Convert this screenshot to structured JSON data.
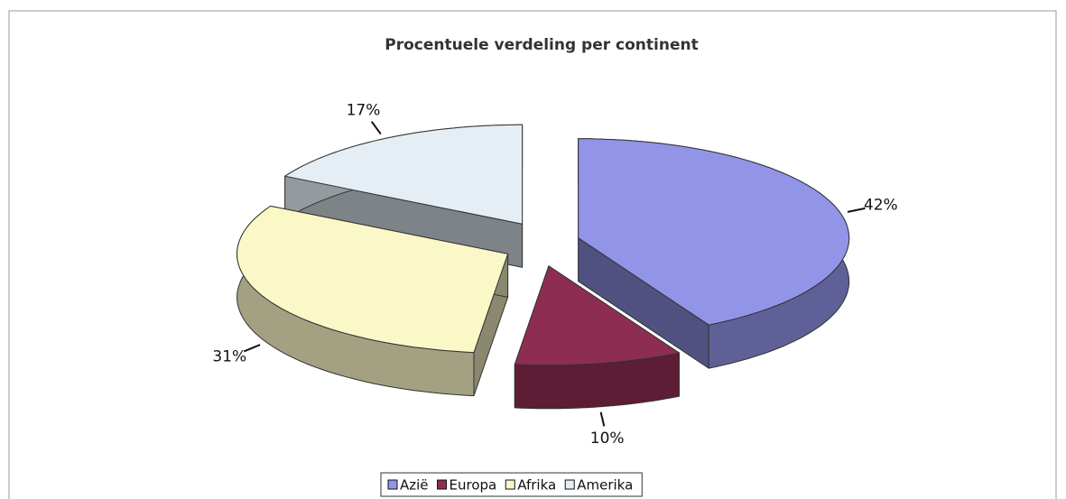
{
  "chart_data": {
    "type": "pie3d",
    "title": "Procentuele verdeling per continent",
    "categories": [
      "Azië",
      "Europa",
      "Afrika",
      "Amerika"
    ],
    "values": [
      42,
      10,
      31,
      17
    ],
    "value_labels": [
      "42%",
      "10%",
      "31%",
      "17%"
    ],
    "colors": [
      "#9294e8",
      "#8e2d52",
      "#fbf8c8",
      "#e4eef4"
    ],
    "legend": "bottom"
  }
}
